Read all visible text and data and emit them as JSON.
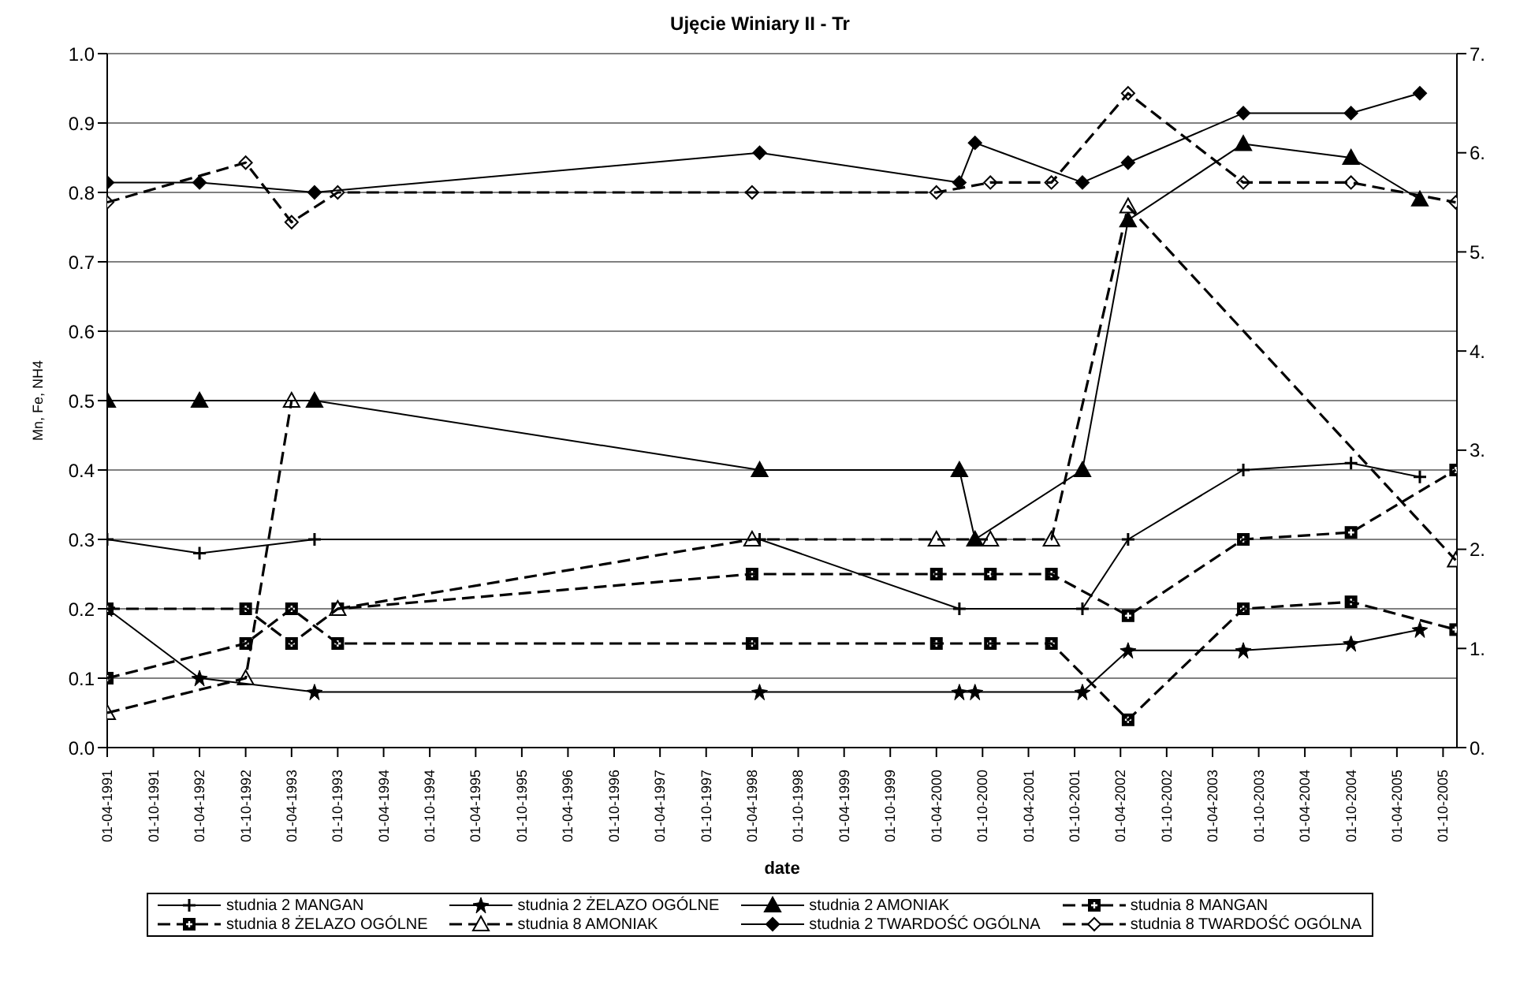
{
  "chart_data": {
    "type": "line",
    "title": "Ujęcie Winiary II - Tr",
    "xlabel": "date",
    "ylabel": "Mn, Fe, NH4",
    "xlim": [
      "1991-04-01",
      "2005-11-25"
    ],
    "xticks": [
      {
        "value": "1991-04-01",
        "label": "01-04-1991"
      },
      {
        "value": "1991-10-01",
        "label": "01-10-1991"
      },
      {
        "value": "1992-04-01",
        "label": "01-04-1992"
      },
      {
        "value": "1992-10-01",
        "label": "01-10-1992"
      },
      {
        "value": "1993-04-01",
        "label": "01-04-1993"
      },
      {
        "value": "1993-10-01",
        "label": "01-10-1993"
      },
      {
        "value": "1994-04-01",
        "label": "01-04-1994"
      },
      {
        "value": "1994-10-01",
        "label": "01-10-1994"
      },
      {
        "value": "1995-04-01",
        "label": "01-04-1995"
      },
      {
        "value": "1995-10-01",
        "label": "01-10-1995"
      },
      {
        "value": "1996-04-01",
        "label": "01-04-1996"
      },
      {
        "value": "1996-10-01",
        "label": "01-10-1996"
      },
      {
        "value": "1997-04-01",
        "label": "01-04-1997"
      },
      {
        "value": "1997-10-01",
        "label": "01-10-1997"
      },
      {
        "value": "1998-04-01",
        "label": "01-04-1998"
      },
      {
        "value": "1998-10-01",
        "label": "01-10-1998"
      },
      {
        "value": "1999-04-01",
        "label": "01-04-1999"
      },
      {
        "value": "1999-10-01",
        "label": "01-10-1999"
      },
      {
        "value": "2000-04-01",
        "label": "01-04-2000"
      },
      {
        "value": "2000-10-01",
        "label": "01-10-2000"
      },
      {
        "value": "2001-04-01",
        "label": "01-04-2001"
      },
      {
        "value": "2001-10-01",
        "label": "01-10-2001"
      },
      {
        "value": "2002-04-01",
        "label": "01-04-2002"
      },
      {
        "value": "2002-10-01",
        "label": "01-10-2002"
      },
      {
        "value": "2003-04-01",
        "label": "01-04-2003"
      },
      {
        "value": "2003-10-01",
        "label": "01-10-2003"
      },
      {
        "value": "2004-04-01",
        "label": "01-04-2004"
      },
      {
        "value": "2004-10-01",
        "label": "01-10-2004"
      },
      {
        "value": "2005-04-01",
        "label": "01-04-2005"
      },
      {
        "value": "2005-10-01",
        "label": "01-10-2005"
      }
    ],
    "ylim": [
      0,
      1
    ],
    "yticks": [
      {
        "value": 0,
        "label": "0.0"
      },
      0.1,
      0.2,
      0.3,
      0.4,
      0.5,
      0.6,
      0.7,
      0.8,
      0.9,
      {
        "value": 1,
        "label": "1.0"
      }
    ],
    "y2lim": [
      0,
      7
    ],
    "y2ticks": [
      {
        "value": 0,
        "label": "0."
      },
      {
        "value": 1,
        "label": "1."
      },
      {
        "value": 2,
        "label": "2."
      },
      {
        "value": 3,
        "label": "3."
      },
      {
        "value": 4,
        "label": "4."
      },
      {
        "value": 5,
        "label": "5."
      },
      {
        "value": 6,
        "label": "6."
      },
      {
        "value": 7,
        "label": "7."
      }
    ],
    "grid": "y",
    "legend": "bottom",
    "series": [
      {
        "name": "studnia 2 MANGAN",
        "color": "#000000",
        "marker": "cross",
        "line_style": "solid",
        "x": [
          "1991-04",
          "1992-04",
          "1993-07",
          "1998-05",
          "2000-07",
          "2001-11",
          "2002-05",
          "2003-08",
          "2004-10",
          "2005-07"
        ],
        "values": [
          0.3,
          0.28,
          0.3,
          0.3,
          0.2,
          0.2,
          0.3,
          0.4,
          0.41,
          0.39
        ]
      },
      {
        "name": "studnia 2 ŻELAZO OGÓLNE",
        "color": "#000000",
        "marker": "star",
        "line_style": "solid",
        "x": [
          "1991-04",
          "1992-04",
          "1993-07",
          "1998-05",
          "2000-07",
          "2000-09",
          "2001-11",
          "2002-05",
          "2003-08",
          "2004-10",
          "2005-07"
        ],
        "values": [
          0.2,
          0.1,
          0.08,
          0.08,
          0.08,
          0.08,
          0.08,
          0.14,
          0.14,
          0.15,
          0.17
        ]
      },
      {
        "name": "studnia 2 AMONIAK",
        "color": "#000000",
        "marker": "triangle",
        "line_style": "solid",
        "x": [
          "1991-04",
          "1992-04",
          "1993-07",
          "1998-05",
          "2000-07",
          "2000-09",
          "2001-11",
          "2002-05",
          "2003-08",
          "2004-10",
          "2005-07"
        ],
        "values": [
          0.5,
          0.5,
          0.5,
          0.4,
          0.4,
          0.3,
          0.4,
          0.76,
          0.87,
          0.85,
          0.79
        ]
      },
      {
        "name": "studnia 8 MANGAN",
        "color": "#000000",
        "marker": "square",
        "line_style": "dashed",
        "x": [
          "1991-04",
          "1992-10",
          "1993-04",
          "1993-10",
          "1998-04",
          "2000-04",
          "2000-11",
          "2001-07",
          "2002-05",
          "2003-08",
          "2004-10",
          "2005-11-20"
        ],
        "values": [
          0.2,
          0.2,
          0.15,
          0.2,
          0.25,
          0.25,
          0.25,
          0.25,
          0.19,
          0.3,
          0.31,
          0.4
        ]
      },
      {
        "name": "studnia 8 ŻELAZO OGÓLNE",
        "color": "#000000",
        "marker": "square",
        "line_style": "dashed",
        "x": [
          "1991-04",
          "1992-10",
          "1993-04",
          "1993-10",
          "1998-04",
          "2000-04",
          "2000-11",
          "2001-07",
          "2002-05",
          "2003-08",
          "2004-10",
          "2005-11-20"
        ],
        "values": [
          0.1,
          0.15,
          0.2,
          0.15,
          0.15,
          0.15,
          0.15,
          0.15,
          0.04,
          0.2,
          0.21,
          0.17
        ]
      },
      {
        "name": "studnia 8 AMONIAK",
        "color": "#000000",
        "marker": "triangle",
        "line_style": "dashed",
        "x": [
          "1991-04",
          "1992-10",
          "1993-04",
          "1993-07",
          "1993-10",
          "1998-04",
          "2000-04",
          "2000-11",
          "2001-07",
          "2002-05",
          "2005-11-20"
        ],
        "values": [
          0.05,
          0.1,
          0.5,
          null,
          0.2,
          0.3,
          0.3,
          0.3,
          0.3,
          0.78,
          0.27
        ]
      },
      {
        "name": "studnia 2 TWARDOŚĆ OGÓLNA",
        "color": "#000000",
        "marker": "diamond",
        "line_style": "solid",
        "axis": "y2",
        "x": [
          "1991-04",
          "1992-04",
          "1993-07",
          "1998-05",
          "2000-07",
          "2000-09",
          "2001-11",
          "2002-05",
          "2003-08",
          "2004-10",
          "2005-07"
        ],
        "values": [
          5.7,
          5.7,
          5.6,
          6.0,
          5.7,
          6.1,
          5.7,
          5.9,
          6.4,
          6.4,
          6.6
        ]
      },
      {
        "name": "studnia 8 TWARDOŚĆ OGÓLNA",
        "color": "#000000",
        "marker": "diamond",
        "line_style": "dashed",
        "axis": "y2",
        "x": [
          "1991-04",
          "1992-10",
          "1993-04",
          "1993-10",
          "1998-04",
          "2000-04",
          "2000-11",
          "2001-07",
          "2002-05",
          "2003-08",
          "2004-10",
          "2005-11-20"
        ],
        "values": [
          5.5,
          5.9,
          5.3,
          5.6,
          5.6,
          5.6,
          5.7,
          5.7,
          6.6,
          5.7,
          5.7,
          5.5
        ]
      }
    ]
  }
}
